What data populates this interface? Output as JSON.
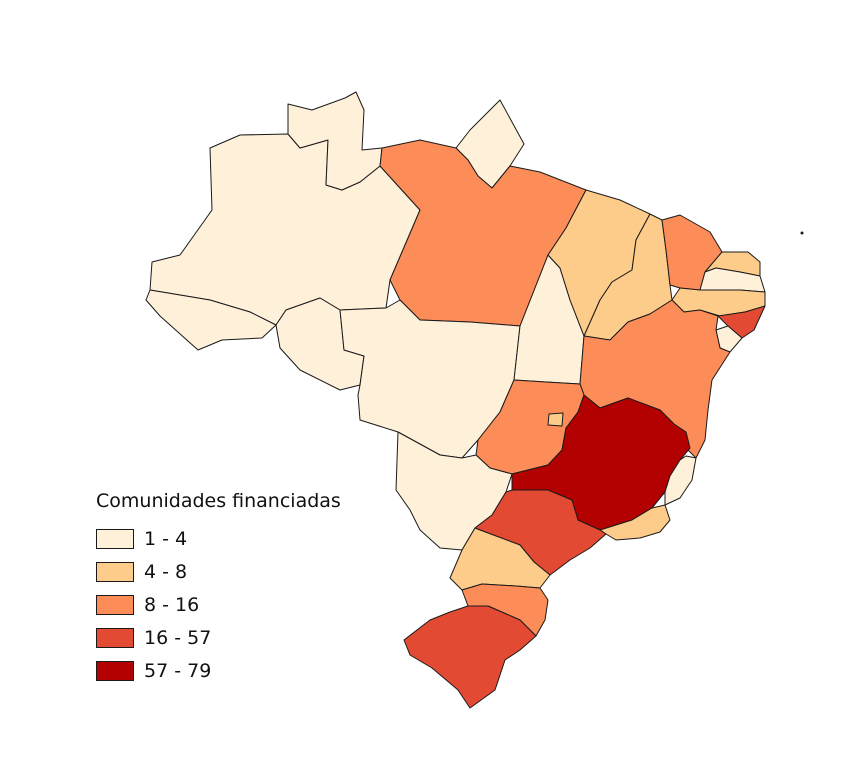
{
  "legend": {
    "title": "Comunidades financiadas",
    "classes": [
      {
        "label": "1 - 4",
        "color": "#fef0d9"
      },
      {
        "label": "4 - 8",
        "color": "#fdcc8a"
      },
      {
        "label": "8 - 16",
        "color": "#fc8d59"
      },
      {
        "label": "16 - 57",
        "color": "#e34a33"
      },
      {
        "label": "57 - 79",
        "color": "#b30000"
      }
    ]
  },
  "states": [
    {
      "id": "AM",
      "class": 0
    },
    {
      "id": "RR",
      "class": 0
    },
    {
      "id": "AP",
      "class": 0
    },
    {
      "id": "PA",
      "class": 2
    },
    {
      "id": "AC",
      "class": 0
    },
    {
      "id": "RO",
      "class": 0
    },
    {
      "id": "MT",
      "class": 0
    },
    {
      "id": "TO",
      "class": 0
    },
    {
      "id": "MA",
      "class": 1
    },
    {
      "id": "PI",
      "class": 1
    },
    {
      "id": "CE",
      "class": 2
    },
    {
      "id": "RN",
      "class": 1
    },
    {
      "id": "PB",
      "class": 0
    },
    {
      "id": "PE",
      "class": 1
    },
    {
      "id": "AL",
      "class": 3
    },
    {
      "id": "SE",
      "class": 0
    },
    {
      "id": "BA",
      "class": 2
    },
    {
      "id": "GO",
      "class": 2
    },
    {
      "id": "DF",
      "class": 1
    },
    {
      "id": "MS",
      "class": 0
    },
    {
      "id": "MG",
      "class": 4
    },
    {
      "id": "ES",
      "class": 0
    },
    {
      "id": "RJ",
      "class": 1
    },
    {
      "id": "SP",
      "class": 3
    },
    {
      "id": "PR",
      "class": 1
    },
    {
      "id": "SC",
      "class": 2
    },
    {
      "id": "RS",
      "class": 3
    }
  ]
}
